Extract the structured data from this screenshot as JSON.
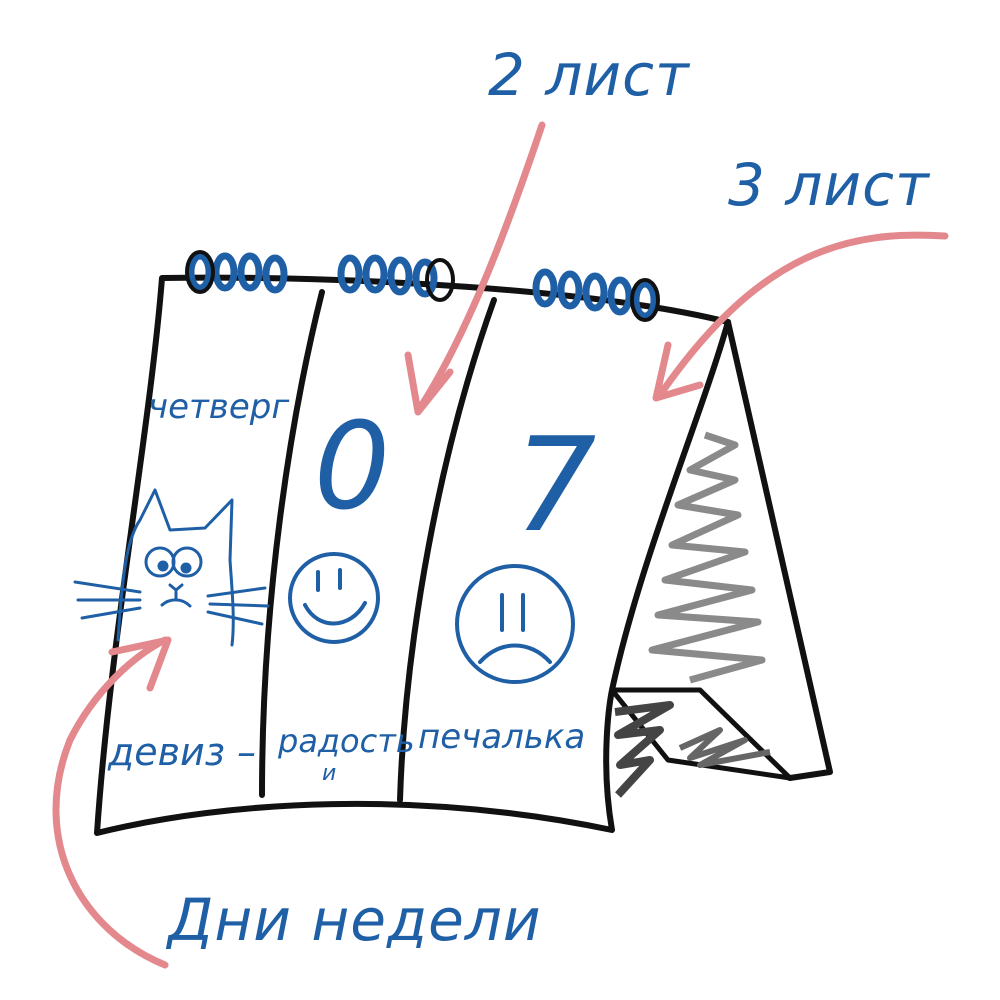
{
  "labels": {
    "sheet2": "2 лист",
    "sheet3": "3 лист",
    "weekdays": "Дни недели"
  },
  "sheet1": {
    "day": "четверг",
    "bottom": "девиз –"
  },
  "sheet2": {
    "digit": "0",
    "bottom_line1": "радость",
    "bottom_line2": "и"
  },
  "sheet3": {
    "digit": "7",
    "bottom": "печалька"
  },
  "colors": {
    "ink": "#111111",
    "blue": "#1f5fa6",
    "arrow": "#e3898d",
    "shade": "#8a8a8a"
  }
}
